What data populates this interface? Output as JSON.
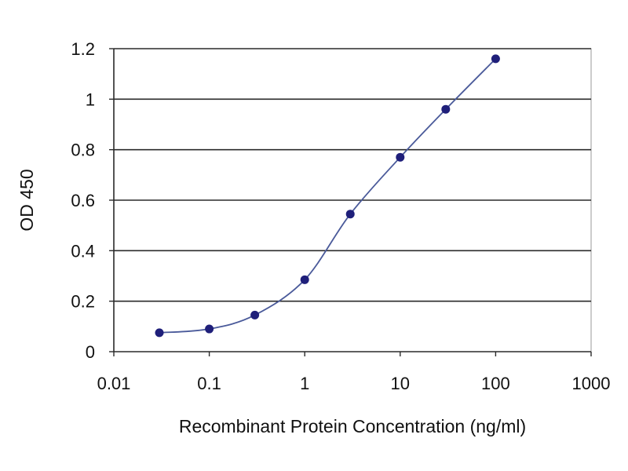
{
  "chart_data": {
    "type": "scatter",
    "title": "",
    "xlabel": "Recombinant Protein Concentration (ng/ml)",
    "ylabel": "OD 450",
    "x_scale": "log",
    "xlim": [
      0.01,
      1000
    ],
    "ylim": [
      0,
      1.2
    ],
    "x_ticks": [
      "0.01",
      "0.1",
      "1",
      "10",
      "100",
      "1000"
    ],
    "x_tick_values": [
      0.01,
      0.1,
      1,
      10,
      100,
      1000
    ],
    "y_ticks": [
      "0",
      "0.2",
      "0.4",
      "0.6",
      "0.8",
      "1",
      "1.2"
    ],
    "y_tick_values": [
      0,
      0.2,
      0.4,
      0.6,
      0.8,
      1,
      1.2
    ],
    "grid": "horizontal",
    "legend": "none",
    "series": [
      {
        "x": [
          0.03,
          0.1,
          0.3,
          1,
          3,
          10,
          30,
          100
        ],
        "y": [
          0.075,
          0.09,
          0.145,
          0.285,
          0.545,
          0.77,
          0.96,
          1.16
        ],
        "fit_curve": true
      }
    ]
  },
  "colors": {
    "series": "#1f1f7a",
    "curve": "#4a5a9a",
    "grid": "#2a2a2a",
    "plot_border": "#9a9a9a",
    "background": "#ffffff"
  }
}
